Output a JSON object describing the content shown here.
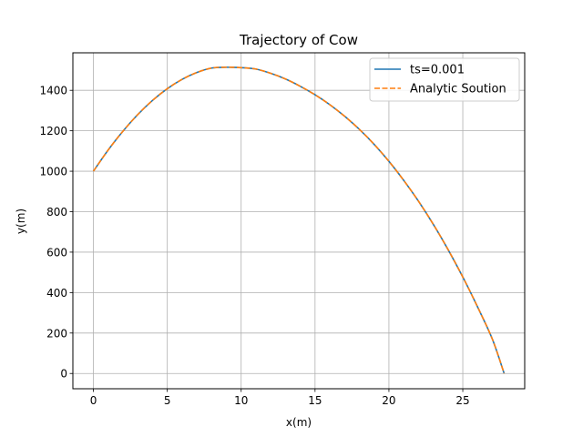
{
  "chart_data": {
    "type": "line",
    "title": "Trajectory of Cow",
    "xlabel": "x(m)",
    "ylabel": "y(m)",
    "xlim": [
      -1.39,
      29.19
    ],
    "ylim": [
      -75.5,
      1585.5
    ],
    "xticks": [
      0,
      5,
      10,
      15,
      20,
      25
    ],
    "xtick_labels": [
      "0",
      "5",
      "10",
      "15",
      "20",
      "25"
    ],
    "yticks": [
      0,
      200,
      400,
      600,
      800,
      1000,
      1200,
      1400
    ],
    "ytick_labels": [
      "0",
      "200",
      "400",
      "600",
      "800",
      "1000",
      "1200",
      "1400"
    ],
    "grid": true,
    "legend_position": "top-right",
    "series": [
      {
        "name": "ts=0.001",
        "color": "#1f77b4",
        "style": "solid",
        "x": [
          0,
          1,
          2,
          3,
          4,
          5,
          6,
          7,
          8,
          9,
          10,
          11,
          12,
          13,
          14,
          15,
          16,
          17,
          18,
          19,
          20,
          21,
          22,
          23,
          24,
          25,
          26,
          27,
          27.8
        ],
        "y": [
          1000,
          1105,
          1198,
          1280,
          1350,
          1408,
          1454,
          1488,
          1510,
          1514,
          1512,
          1505,
          1484,
          1456,
          1420,
          1378,
          1329,
          1272,
          1207,
          1133,
          1049,
          955,
          852,
          738,
          613,
          477,
          329,
          170,
          0
        ]
      },
      {
        "name": "Analytic Soution",
        "color": "#ff7f0e",
        "style": "dashed",
        "x": [
          0,
          1,
          2,
          3,
          4,
          5,
          6,
          7,
          8,
          9,
          10,
          11,
          12,
          13,
          14,
          15,
          16,
          17,
          18,
          19,
          20,
          21,
          22,
          23,
          24,
          25,
          26,
          27,
          27.8
        ],
        "y": [
          1000,
          1105,
          1198,
          1280,
          1350,
          1408,
          1454,
          1488,
          1510,
          1514,
          1512,
          1505,
          1484,
          1456,
          1420,
          1378,
          1329,
          1272,
          1207,
          1133,
          1049,
          955,
          852,
          738,
          613,
          477,
          329,
          170,
          0
        ]
      }
    ]
  }
}
